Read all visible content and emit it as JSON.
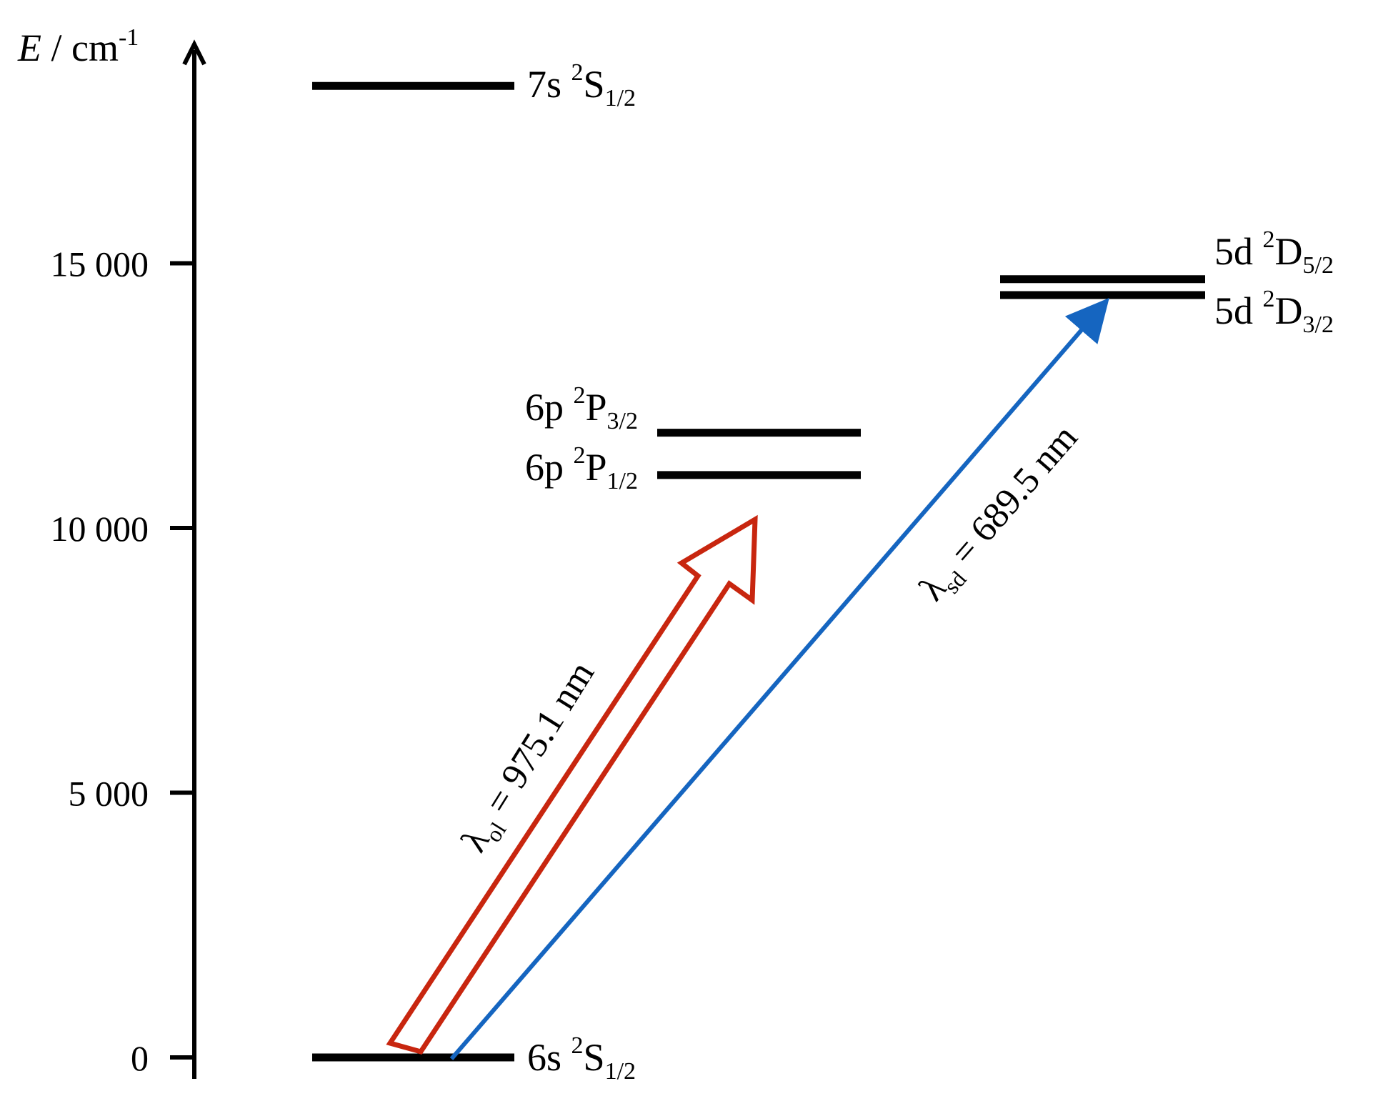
{
  "axis": {
    "label_symbol": "E",
    "label_unit": " / cm",
    "label_exp": "-1",
    "ticks": [
      {
        "value": 0,
        "label": "0"
      },
      {
        "value": 5000,
        "label": "5 000"
      },
      {
        "value": 10000,
        "label": "10 000"
      },
      {
        "value": 15000,
        "label": "15 000"
      }
    ]
  },
  "levels": [
    {
      "id": "6s",
      "energy": 0,
      "config": "6s ",
      "mult": "2",
      "term": "S",
      "j": "1/2"
    },
    {
      "id": "6p12",
      "energy": 11000,
      "config": "6p ",
      "mult": "2",
      "term": "P",
      "j": "1/2"
    },
    {
      "id": "6p32",
      "energy": 11800,
      "config": "6p ",
      "mult": "2",
      "term": "P",
      "j": "3/2"
    },
    {
      "id": "5d32",
      "energy": 14400,
      "config": "5d ",
      "mult": "2",
      "term": "D",
      "j": "3/2"
    },
    {
      "id": "5d52",
      "energy": 14700,
      "config": "5d ",
      "mult": "2",
      "term": "D",
      "j": "5/2"
    },
    {
      "id": "7s",
      "energy": 18350,
      "config": "7s ",
      "mult": "2",
      "term": "S",
      "j": "1/2"
    }
  ],
  "transitions": [
    {
      "id": "ol",
      "color": "#c8260f",
      "symbol": "λ",
      "sub": "ol",
      "value": " = 975.1 nm"
    },
    {
      "id": "sd",
      "color": "#1565c0",
      "symbol": "λ",
      "sub": "sd",
      "value": " = 689.5 nm"
    }
  ]
}
